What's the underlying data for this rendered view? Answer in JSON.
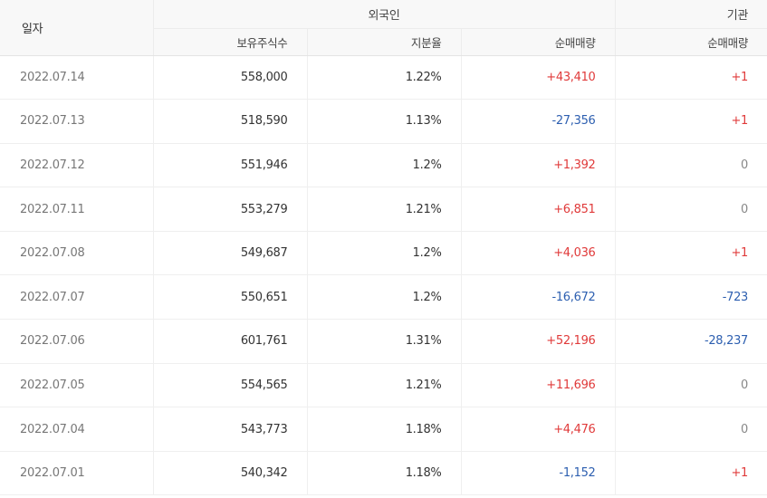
{
  "header": {
    "date": "일자",
    "foreign": "외국인",
    "institution": "기관",
    "holdings": "보유주식수",
    "share": "지분율",
    "foreign_net": "순매매량",
    "institution_net": "순매매량"
  },
  "rows": [
    {
      "date": "2022.07.14",
      "holdings": "558,000",
      "share": "1.22%",
      "foreign_net": "+43,410",
      "institution_net": "+1"
    },
    {
      "date": "2022.07.13",
      "holdings": "518,590",
      "share": "1.13%",
      "foreign_net": "-27,356",
      "institution_net": "+1"
    },
    {
      "date": "2022.07.12",
      "holdings": "551,946",
      "share": "1.2%",
      "foreign_net": "+1,392",
      "institution_net": "0"
    },
    {
      "date": "2022.07.11",
      "holdings": "553,279",
      "share": "1.21%",
      "foreign_net": "+6,851",
      "institution_net": "0"
    },
    {
      "date": "2022.07.08",
      "holdings": "549,687",
      "share": "1.2%",
      "foreign_net": "+4,036",
      "institution_net": "+1"
    },
    {
      "date": "2022.07.07",
      "holdings": "550,651",
      "share": "1.2%",
      "foreign_net": "-16,672",
      "institution_net": "-723"
    },
    {
      "date": "2022.07.06",
      "holdings": "601,761",
      "share": "1.31%",
      "foreign_net": "+52,196",
      "institution_net": "-28,237"
    },
    {
      "date": "2022.07.05",
      "holdings": "554,565",
      "share": "1.21%",
      "foreign_net": "+11,696",
      "institution_net": "0"
    },
    {
      "date": "2022.07.04",
      "holdings": "543,773",
      "share": "1.18%",
      "foreign_net": "+4,476",
      "institution_net": "0"
    },
    {
      "date": "2022.07.01",
      "holdings": "540,342",
      "share": "1.18%",
      "foreign_net": "-1,152",
      "institution_net": "+1"
    }
  ],
  "colors": {
    "positive": "#e03a3a",
    "negative": "#2d5fb0",
    "neutral": "#888888"
  }
}
